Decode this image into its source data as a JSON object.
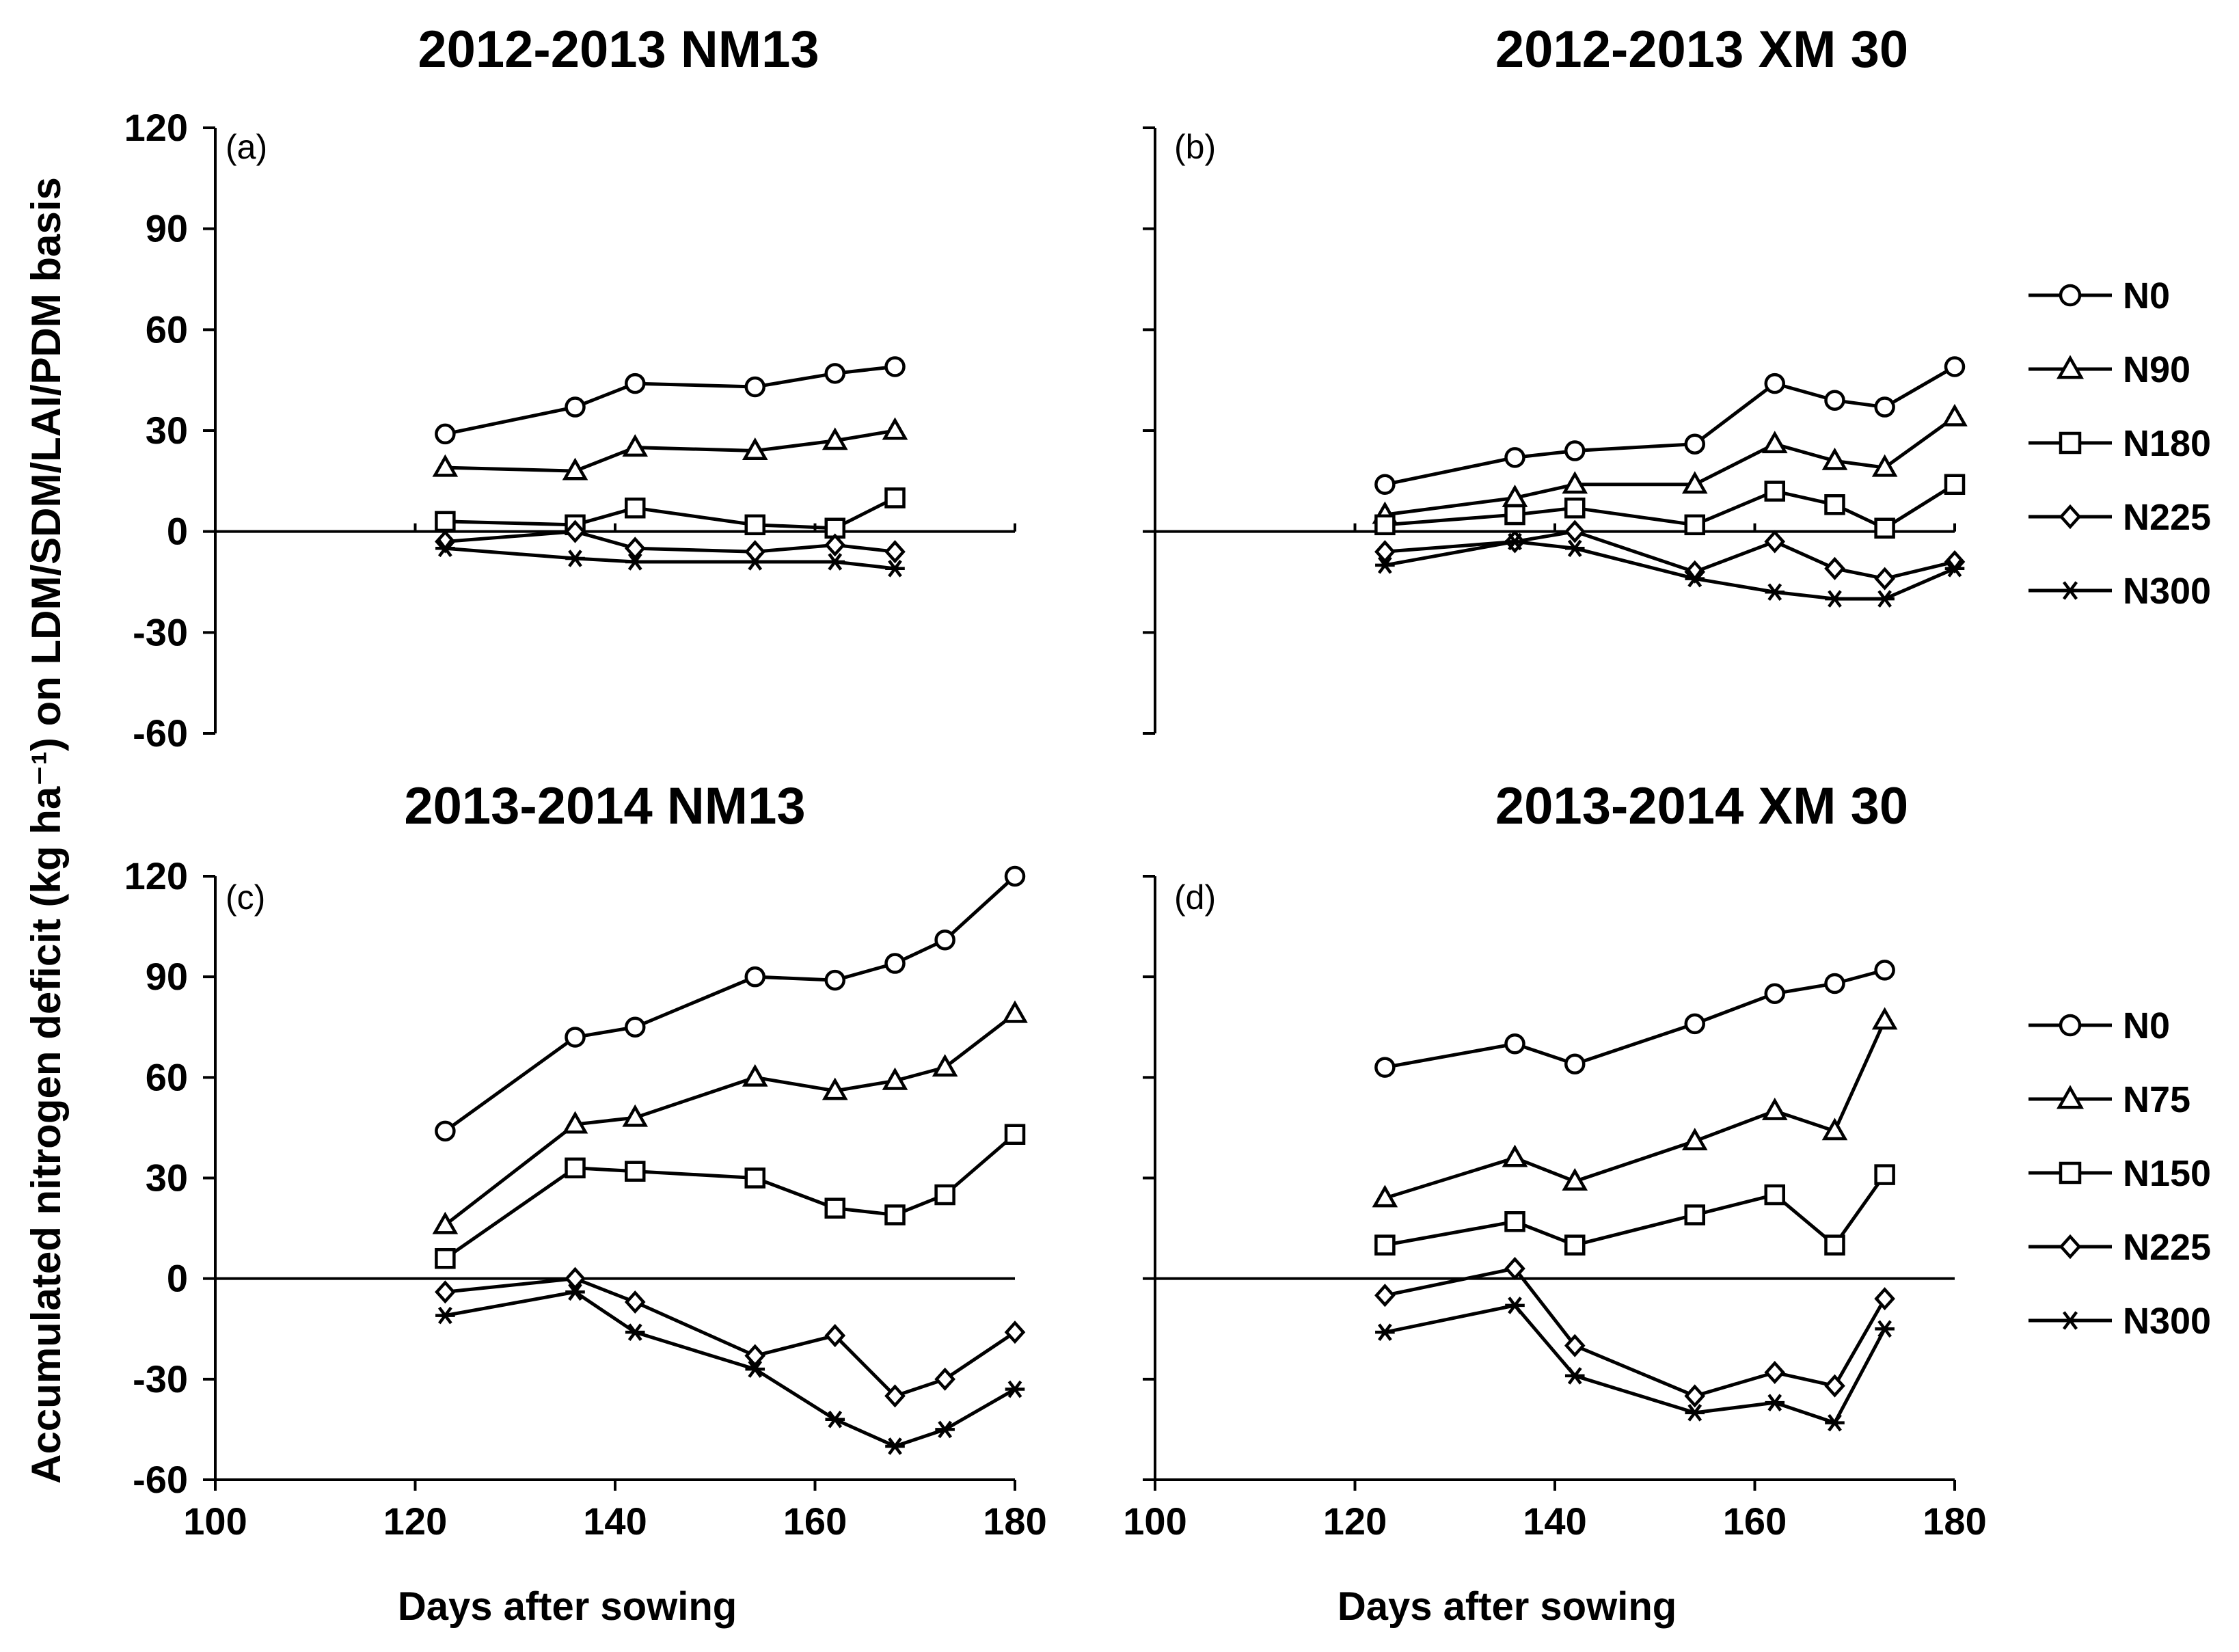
{
  "y_axis_label": "Accumulated nitrogen deficit (kg ha⁻¹) on LDM/SDM/LAI/PDM basis",
  "chart_data": [
    {
      "type": "line",
      "panel": "(a)",
      "title": "2012-2013  NM13",
      "xlabel": "",
      "ylabel": "",
      "xlim": [
        100,
        180
      ],
      "ylim": [
        -60,
        120
      ],
      "xticks": [],
      "yticks": [
        "120",
        "90",
        "60",
        "30",
        "0",
        "-30",
        "-60"
      ],
      "x": [
        123,
        136,
        142,
        154,
        162,
        168
      ],
      "series": [
        {
          "name": "N0",
          "marker": "circle",
          "values": [
            29,
            37,
            44,
            43,
            47,
            49
          ]
        },
        {
          "name": "N90",
          "marker": "triangle",
          "values": [
            19,
            18,
            25,
            24,
            27,
            30
          ]
        },
        {
          "name": "N180",
          "marker": "square",
          "values": [
            3,
            2,
            7,
            2,
            1,
            10
          ]
        },
        {
          "name": "N225",
          "marker": "diamond",
          "values": [
            -3,
            0,
            -5,
            -6,
            -4,
            -6
          ]
        },
        {
          "name": "N300",
          "marker": "star",
          "values": [
            -5,
            -8,
            -9,
            -9,
            -9,
            -11
          ]
        }
      ]
    },
    {
      "type": "line",
      "panel": "(b)",
      "title": "2012-2013 XM 30",
      "xlabel": "",
      "ylabel": "",
      "xlim": [
        100,
        180
      ],
      "ylim": [
        -60,
        120
      ],
      "xticks": [],
      "yticks": [],
      "x": [
        123,
        136,
        142,
        154,
        162,
        168,
        173,
        180
      ],
      "series": [
        {
          "name": "N0",
          "marker": "circle",
          "values": [
            14,
            22,
            24,
            26,
            44,
            39,
            37,
            49
          ]
        },
        {
          "name": "N90",
          "marker": "triangle",
          "values": [
            5,
            10,
            14,
            14,
            26,
            21,
            19,
            34
          ]
        },
        {
          "name": "N180",
          "marker": "square",
          "values": [
            2,
            5,
            7,
            2,
            12,
            8,
            1,
            14
          ]
        },
        {
          "name": "N225",
          "marker": "diamond",
          "values": [
            -6,
            -3,
            0,
            -12,
            -3,
            -11,
            -14,
            -9
          ]
        },
        {
          "name": "N300",
          "marker": "star",
          "values": [
            -10,
            -3,
            -5,
            -14,
            -18,
            -20,
            -20,
            -11
          ]
        }
      ],
      "legend": {
        "entries": [
          "N0",
          "N90",
          "N180",
          "N225",
          "N300"
        ],
        "position": "right"
      }
    },
    {
      "type": "line",
      "panel": "(c)",
      "title": "2013-2014 NM13",
      "xlabel": "Days after sowing",
      "ylabel": "",
      "xlim": [
        100,
        180
      ],
      "ylim": [
        -60,
        120
      ],
      "xticks": [
        "100",
        "120",
        "140",
        "160",
        "180"
      ],
      "yticks": [
        "120",
        "90",
        "60",
        "30",
        "0",
        "-30",
        "-60"
      ],
      "x": [
        123,
        136,
        142,
        154,
        162,
        168,
        173,
        180
      ],
      "series": [
        {
          "name": "N0",
          "marker": "circle",
          "values": [
            44,
            72,
            75,
            90,
            89,
            94,
            101,
            120
          ]
        },
        {
          "name": "N75",
          "marker": "triangle",
          "values": [
            16,
            46,
            48,
            60,
            56,
            59,
            63,
            79
          ]
        },
        {
          "name": "N150",
          "marker": "square",
          "values": [
            6,
            33,
            32,
            30,
            21,
            19,
            25,
            43
          ]
        },
        {
          "name": "N225",
          "marker": "diamond",
          "values": [
            -4,
            0,
            -7,
            -23,
            -17,
            -35,
            -30,
            -16
          ]
        },
        {
          "name": "N300",
          "marker": "star",
          "values": [
            -11,
            -4,
            -16,
            -27,
            -42,
            -50,
            -45,
            -33
          ]
        }
      ]
    },
    {
      "type": "line",
      "panel": "(d)",
      "title": "2013-2014 XM 30",
      "xlabel": "Days after sowing",
      "ylabel": "",
      "xlim": [
        100,
        180
      ],
      "ylim": [
        -60,
        120
      ],
      "xticks": [
        "100",
        "120",
        "140",
        "160",
        "180"
      ],
      "yticks": [],
      "x": [
        123,
        136,
        142,
        154,
        162,
        168,
        173
      ],
      "series": [
        {
          "name": "N0",
          "marker": "circle",
          "values": [
            63,
            70,
            64,
            76,
            85,
            88,
            92
          ]
        },
        {
          "name": "N75",
          "marker": "triangle",
          "values": [
            24,
            36,
            29,
            41,
            50,
            44,
            77
          ]
        },
        {
          "name": "N150",
          "marker": "square",
          "values": [
            10,
            17,
            10,
            19,
            25,
            10,
            31
          ]
        },
        {
          "name": "N225",
          "marker": "diamond",
          "values": [
            -5,
            3,
            -20,
            -35,
            -28,
            -32,
            -6
          ]
        },
        {
          "name": "N300",
          "marker": "star",
          "values": [
            -16,
            -8,
            -29,
            -40,
            -37,
            -43,
            -15
          ]
        }
      ],
      "legend": {
        "entries": [
          "N0",
          "N75",
          "N150",
          "N225",
          "N300"
        ],
        "position": "right"
      }
    }
  ]
}
